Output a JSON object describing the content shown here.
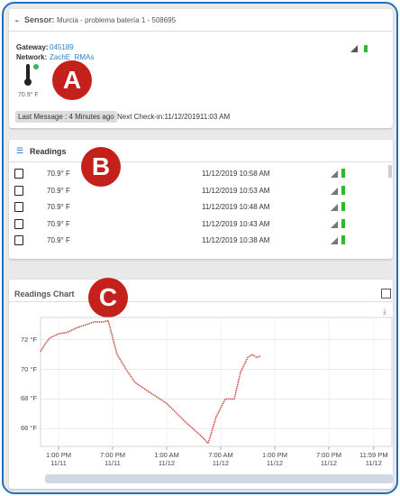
{
  "sensor": {
    "label": "Sensor:",
    "name": "Murcia - problema batería 1 - 508695"
  },
  "details": {
    "gateway_label": "Gateway:",
    "gateway": "045189",
    "network_label": "Network:",
    "network": "ZachE_RMAs",
    "reading": "70.9° F",
    "last_message": "Last Message : 4 Minutes ago",
    "next_checkin": "Next Check-in:11/12/201911:03 AM"
  },
  "callouts": [
    "A",
    "B",
    "C"
  ],
  "readings": {
    "title": "Readings",
    "rows": [
      [
        "70.9° F",
        "11/12/2019 10:58 AM"
      ],
      [
        "70.9° F",
        "11/12/2019 10:53 AM"
      ],
      [
        "70.9° F",
        "11/12/2019 10:48 AM"
      ],
      [
        "70.9° F",
        "11/12/2019 10:43 AM"
      ],
      [
        "70.9° F",
        "11/12/2019 10:38 AM"
      ]
    ]
  },
  "chart_data": {
    "type": "line",
    "title": "Readings Chart",
    "color": "#c9504b",
    "x": [
      11,
      11.5,
      12,
      13,
      14,
      15,
      16,
      17,
      18,
      18.5,
      19.5,
      20.5,
      21.5,
      23,
      25,
      27,
      29,
      29.6,
      30.5,
      31.5,
      32.5,
      33.2,
      34,
      34.5,
      35,
      35.4
    ],
    "values": [
      71.2,
      71.7,
      72.1,
      72.4,
      72.5,
      72.8,
      73.0,
      73.2,
      73.2,
      73.3,
      71.0,
      70.0,
      69.1,
      68.5,
      67.7,
      66.5,
      65.4,
      65.0,
      66.8,
      68.0,
      68.0,
      69.8,
      70.8,
      71.0,
      70.8,
      70.9
    ],
    "xlim": [
      11,
      50
    ],
    "ylim": [
      64.8,
      73.5
    ],
    "grid": true,
    "xticks": [
      {
        "value": 13,
        "label": "1:00 PM\n11/11"
      },
      {
        "value": 19,
        "label": "7:00 PM\n11/11"
      },
      {
        "value": 25,
        "label": "1:00 AM\n11/12"
      },
      {
        "value": 31,
        "label": "7:00 AM\n11/12"
      },
      {
        "value": 37,
        "label": "1:00 PM\n11/12"
      },
      {
        "value": 43,
        "label": "7:00 PM\n11/12"
      },
      {
        "value": 47.98,
        "label": "11:59 PM\n11/12"
      }
    ],
    "yticks": [
      {
        "value": 66,
        "label": "66 °F"
      },
      {
        "value": 68,
        "label": "68 °F"
      },
      {
        "value": 70,
        "label": "70 °F"
      },
      {
        "value": 72,
        "label": "72 °F"
      }
    ]
  }
}
